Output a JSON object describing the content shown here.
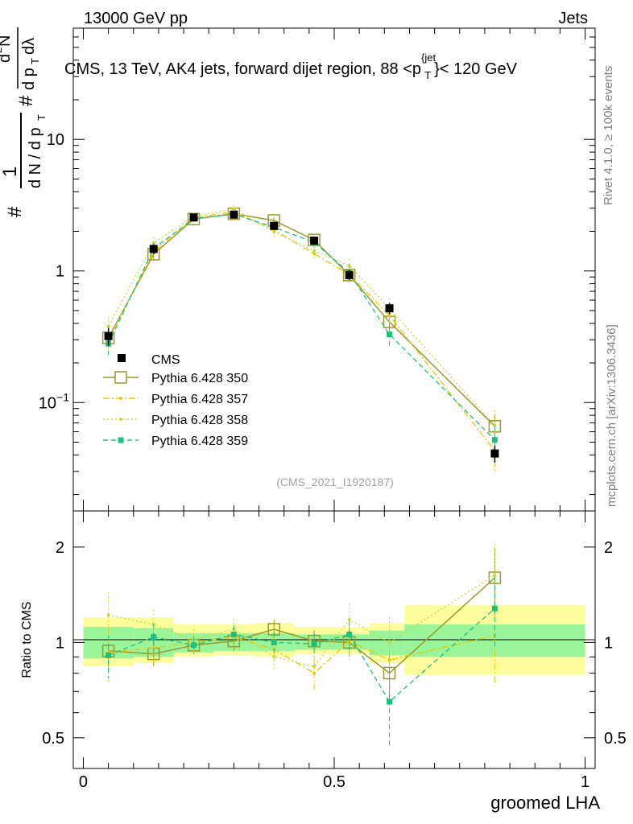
{
  "header": {
    "left": "13000 GeV pp",
    "right": "Jets"
  },
  "side": {
    "rivet": "Rivet 4.1.0, ≥ 100k events",
    "mcplots": "mcplots.cern.ch [arXiv:1306.3436]"
  },
  "chart_data": [
    {
      "type": "line",
      "title": "CMS, 13 TeV, AK4 jets, forward dijet region, 88 <p",
      "title_sup": "{jet",
      "title_sub": "T",
      "title_end": "}< 120 GeV",
      "watermark": "(CMS_2021_I1920187)",
      "ylabel_parts": [
        "#",
        "1",
        "d N / d p",
        "T",
        "#",
        "d",
        "2",
        "N",
        "d p",
        "T",
        "dλ"
      ],
      "yscale": "log",
      "ylim": [
        0.015,
        70
      ],
      "xlim": [
        -0.02,
        1.02
      ],
      "yticks": [
        {
          "value": 0.1,
          "label": "10",
          "sup": "−1"
        },
        {
          "value": 1,
          "label": "1",
          "sup": ""
        },
        {
          "value": 10,
          "label": "10",
          "sup": ""
        }
      ],
      "x": [
        0.05,
        0.14,
        0.22,
        0.3,
        0.38,
        0.46,
        0.53,
        0.61,
        0.82
      ],
      "data": {
        "name": "CMS",
        "values": [
          0.32,
          1.47,
          2.55,
          2.68,
          2.2,
          1.7,
          0.93,
          0.52,
          0.041
        ],
        "errors": [
          0.05,
          0.12,
          0.12,
          0.12,
          0.12,
          0.1,
          0.08,
          0.05,
          0.006
        ]
      },
      "series": [
        {
          "name": "Pythia 6.428 350",
          "color": "#9a9a2a",
          "dash": "",
          "marker": "open-square",
          "values": [
            0.31,
            1.34,
            2.48,
            2.72,
            2.42,
            1.72,
            0.93,
            0.41,
            0.066
          ],
          "errors": [
            0.05,
            0.12,
            0.12,
            0.15,
            0.15,
            0.12,
            0.09,
            0.06,
            0.016
          ]
        },
        {
          "name": "Pythia 6.428 357",
          "color": "#e8c800",
          "dash": "8,3,2,3",
          "marker": "small",
          "values": [
            0.3,
            1.4,
            2.55,
            2.8,
            2.05,
            1.35,
            0.94,
            0.46,
            0.043
          ],
          "errors": [
            0.06,
            0.15,
            0.14,
            0.17,
            0.17,
            0.15,
            0.12,
            0.08,
            0.014
          ]
        },
        {
          "name": "Pythia 6.428 358",
          "color": "#c8d832",
          "dash": "2,3",
          "marker": "small",
          "values": [
            0.38,
            1.63,
            2.6,
            2.95,
            1.98,
            1.42,
            1.1,
            0.52,
            0.067
          ],
          "errors": [
            0.07,
            0.18,
            0.16,
            0.2,
            0.18,
            0.16,
            0.13,
            0.1,
            0.02
          ]
        },
        {
          "name": "Pythia 6.428 359",
          "color": "#1ec07e",
          "dash": "6,4",
          "marker": "filled-square",
          "values": [
            0.28,
            1.48,
            2.5,
            2.7,
            2.15,
            1.65,
            0.97,
            0.33,
            0.052
          ],
          "errors": [
            0.05,
            0.14,
            0.12,
            0.15,
            0.14,
            0.13,
            0.1,
            0.06,
            0.014
          ]
        }
      ]
    },
    {
      "type": "line",
      "ylabel": "Ratio to CMS",
      "xlabel": "groomed LHA",
      "yscale": "log",
      "ylim": [
        0.4,
        2.6
      ],
      "xlim": [
        -0.02,
        1.02
      ],
      "yticks": [
        {
          "value": 0.5,
          "label": "0.5"
        },
        {
          "value": 1,
          "label": "1"
        },
        {
          "value": 2,
          "label": "2"
        }
      ],
      "xticks": [
        {
          "value": 0,
          "label": "0"
        },
        {
          "value": 0.5,
          "label": "0.5"
        },
        {
          "value": 1,
          "label": "1"
        }
      ],
      "bands": [
        {
          "x0": 0.0,
          "x1": 0.1,
          "inner": [
            0.89,
            1.12
          ],
          "outer": [
            0.84,
            1.2
          ]
        },
        {
          "x0": 0.1,
          "x1": 0.18,
          "inner": [
            0.9,
            1.11
          ],
          "outer": [
            0.86,
            1.2
          ]
        },
        {
          "x0": 0.18,
          "x1": 0.26,
          "inner": [
            0.93,
            1.07
          ],
          "outer": [
            0.9,
            1.14
          ]
        },
        {
          "x0": 0.26,
          "x1": 0.34,
          "inner": [
            0.94,
            1.07
          ],
          "outer": [
            0.91,
            1.14
          ]
        },
        {
          "x0": 0.34,
          "x1": 0.42,
          "inner": [
            0.94,
            1.07
          ],
          "outer": [
            0.9,
            1.15
          ]
        },
        {
          "x0": 0.42,
          "x1": 0.5,
          "inner": [
            0.95,
            1.06
          ],
          "outer": [
            0.92,
            1.12
          ]
        },
        {
          "x0": 0.5,
          "x1": 0.57,
          "inner": [
            0.95,
            1.06
          ],
          "outer": [
            0.92,
            1.12
          ]
        },
        {
          "x0": 0.57,
          "x1": 0.64,
          "inner": [
            0.91,
            1.09
          ],
          "outer": [
            0.86,
            1.15
          ]
        },
        {
          "x0": 0.64,
          "x1": 1.0,
          "inner": [
            0.9,
            1.14
          ],
          "outer": [
            0.79,
            1.31
          ]
        }
      ],
      "series": [
        {
          "name": "Pythia 6.428 350",
          "values": [
            0.94,
            0.92,
            0.98,
            1.01,
            1.1,
            1.01,
            1.0,
            0.8,
            1.6
          ],
          "errors": [
            0.1,
            0.08,
            0.06,
            0.07,
            0.08,
            0.08,
            0.1,
            0.14,
            0.38
          ]
        },
        {
          "name": "Pythia 6.428 357",
          "values": [
            0.93,
            0.96,
            1.0,
            1.04,
            0.95,
            0.8,
            1.01,
            0.88,
            1.05
          ],
          "errors": [
            0.18,
            0.12,
            0.07,
            0.08,
            0.09,
            0.09,
            0.13,
            0.16,
            0.32
          ]
        },
        {
          "name": "Pythia 6.428 358",
          "values": [
            1.22,
            1.14,
            1.02,
            1.1,
            0.9,
            0.84,
            1.18,
            1.0,
            1.63
          ],
          "errors": [
            0.22,
            0.13,
            0.08,
            0.09,
            0.09,
            0.09,
            0.15,
            0.2,
            0.42
          ]
        },
        {
          "name": "Pythia 6.428 359",
          "values": [
            0.91,
            1.04,
            0.98,
            1.06,
            1.0,
            0.99,
            1.06,
            0.65,
            1.28
          ],
          "errors": [
            0.14,
            0.1,
            0.06,
            0.07,
            0.08,
            0.09,
            0.11,
            0.18,
            0.33
          ]
        }
      ]
    }
  ]
}
